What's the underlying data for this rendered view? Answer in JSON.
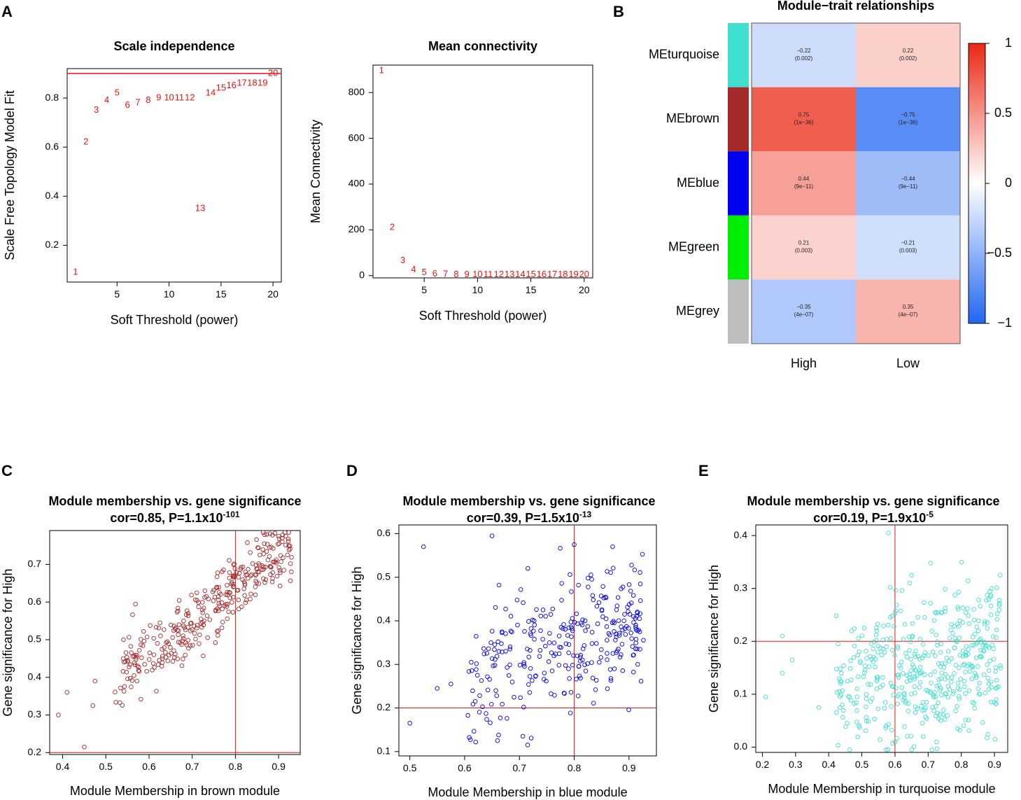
{
  "panel_labels": {
    "a": "A",
    "b": "B",
    "c": "C",
    "d": "D",
    "e": "E"
  },
  "colors": {
    "red": "#ee1111",
    "brown": "#a52a2a",
    "blue": "#0000ee",
    "turquoise": "#40e0d0"
  },
  "chart_data": [
    {
      "id": "A1",
      "type": "scatter",
      "title": "Scale independence",
      "xlabel": "Soft Threshold (power)",
      "ylabel": "Scale Free Topology Model Fit",
      "xlim": [
        0.2,
        20.8
      ],
      "ylim": [
        0.05,
        0.92
      ],
      "xticks": [
        5,
        10,
        15,
        20
      ],
      "yticks": [
        0.2,
        0.4,
        0.6,
        0.8
      ],
      "hline": 0.9,
      "points": [
        {
          "label": "1",
          "x": 1,
          "y": 0.09
        },
        {
          "label": "2",
          "x": 2,
          "y": 0.62
        },
        {
          "label": "3",
          "x": 3,
          "y": 0.75
        },
        {
          "label": "4",
          "x": 4,
          "y": 0.79
        },
        {
          "label": "5",
          "x": 5,
          "y": 0.82
        },
        {
          "label": "6",
          "x": 6,
          "y": 0.77
        },
        {
          "label": "7",
          "x": 7,
          "y": 0.78
        },
        {
          "label": "8",
          "x": 8,
          "y": 0.79
        },
        {
          "label": "9",
          "x": 9,
          "y": 0.8
        },
        {
          "label": "10",
          "x": 10,
          "y": 0.8
        },
        {
          "label": "11",
          "x": 11,
          "y": 0.8
        },
        {
          "label": "12",
          "x": 12,
          "y": 0.8
        },
        {
          "label": "13",
          "x": 13,
          "y": 0.35
        },
        {
          "label": "14",
          "x": 14,
          "y": 0.82
        },
        {
          "label": "15",
          "x": 15,
          "y": 0.84
        },
        {
          "label": "16",
          "x": 16,
          "y": 0.85
        },
        {
          "label": "17",
          "x": 17,
          "y": 0.86
        },
        {
          "label": "18",
          "x": 18,
          "y": 0.86
        },
        {
          "label": "19",
          "x": 19,
          "y": 0.86
        },
        {
          "label": "20",
          "x": 20,
          "y": 0.9
        }
      ]
    },
    {
      "id": "A2",
      "type": "scatter",
      "title": "Mean connectivity",
      "xlabel": "Soft Threshold (power)",
      "ylabel": "Mean Connectivity",
      "xlim": [
        0.2,
        20.8
      ],
      "ylim": [
        -10,
        920
      ],
      "xticks": [
        5,
        10,
        15,
        20
      ],
      "yticks": [
        0,
        200,
        400,
        600,
        800
      ],
      "points": [
        {
          "label": "1",
          "x": 1,
          "y": 895
        },
        {
          "label": "2",
          "x": 2,
          "y": 210
        },
        {
          "label": "3",
          "x": 3,
          "y": 65
        },
        {
          "label": "4",
          "x": 4,
          "y": 25
        },
        {
          "label": "5",
          "x": 5,
          "y": 12
        },
        {
          "label": "6",
          "x": 6,
          "y": 6
        },
        {
          "label": "7",
          "x": 7,
          "y": 5
        },
        {
          "label": "8",
          "x": 8,
          "y": 4
        },
        {
          "label": "9",
          "x": 9,
          "y": 3
        },
        {
          "label": "10",
          "x": 10,
          "y": 3
        },
        {
          "label": "11",
          "x": 11,
          "y": 3
        },
        {
          "label": "12",
          "x": 12,
          "y": 3
        },
        {
          "label": "13",
          "x": 13,
          "y": 3
        },
        {
          "label": "14",
          "x": 14,
          "y": 3
        },
        {
          "label": "15",
          "x": 15,
          "y": 3
        },
        {
          "label": "16",
          "x": 16,
          "y": 3
        },
        {
          "label": "17",
          "x": 17,
          "y": 3
        },
        {
          "label": "18",
          "x": 18,
          "y": 3
        },
        {
          "label": "19",
          "x": 19,
          "y": 3
        },
        {
          "label": "20",
          "x": 20,
          "y": 3
        }
      ]
    },
    {
      "id": "B",
      "type": "heatmap",
      "title": "Module−trait relationships",
      "columns": [
        "High",
        "Low"
      ],
      "rows": [
        {
          "module": "MEturquoise",
          "color": "#40e0d0",
          "cells": [
            {
              "r": -0.22,
              "p": "(0.002)",
              "label": "−0.22"
            },
            {
              "r": 0.22,
              "p": "(0.002)",
              "label": "0.22"
            }
          ]
        },
        {
          "module": "MEbrown",
          "color": "#a52a2a",
          "cells": [
            {
              "r": 0.75,
              "p": "(1e−36)",
              "label": "0.75"
            },
            {
              "r": -0.75,
              "p": "(1e−36)",
              "label": "−0.75"
            }
          ]
        },
        {
          "module": "MEblue",
          "color": "#0000ee",
          "cells": [
            {
              "r": 0.44,
              "p": "(9e−11)",
              "label": "0.44"
            },
            {
              "r": -0.44,
              "p": "(9e−11)",
              "label": "−0.44"
            }
          ]
        },
        {
          "module": "MEgreen",
          "color": "#00ee00",
          "cells": [
            {
              "r": 0.21,
              "p": "(0.003)",
              "label": "0.21"
            },
            {
              "r": -0.21,
              "p": "(0.003)",
              "label": "−0.21"
            }
          ]
        },
        {
          "module": "MEgrey",
          "color": "#bebebe",
          "cells": [
            {
              "r": -0.35,
              "p": "(4e−07)",
              "label": "−0.35"
            },
            {
              "r": 0.35,
              "p": "(4e−07)",
              "label": "0.35"
            }
          ]
        }
      ],
      "colorbar": {
        "range": [
          -1,
          1
        ],
        "ticks": [
          {
            "v": 1,
            "label": "1"
          },
          {
            "v": 0.5,
            "label": "0.5"
          },
          {
            "v": 0,
            "label": "0"
          },
          {
            "v": -0.5,
            "label": "−0.5"
          },
          {
            "v": -1,
            "label": "−1"
          }
        ]
      }
    },
    {
      "id": "C",
      "type": "scatter",
      "title": "Module membership vs. gene significance",
      "subtitle_base": "cor=0.85, P=1.1x10",
      "subtitle_exp": "-101",
      "xlabel": "Module Membership in brown module",
      "ylabel": "Gene significance for High",
      "color": "#a52a2a",
      "xlim": [
        0.37,
        0.95
      ],
      "ylim": [
        0.195,
        0.79
      ],
      "xticks": [
        0.4,
        0.5,
        0.6,
        0.7,
        0.8,
        0.9
      ],
      "yticks": [
        0.2,
        0.3,
        0.4,
        0.5,
        0.6,
        0.7
      ],
      "vline": 0.8,
      "hline": 0.2,
      "cor": 0.85,
      "n_points": 340,
      "xrange_points": [
        0.52,
        0.93
      ],
      "y_fit": {
        "intercept": -0.06,
        "slope": 0.87,
        "noise": 0.045
      },
      "extra_points": [
        [
          0.39,
          0.3
        ],
        [
          0.41,
          0.36
        ],
        [
          0.45,
          0.215
        ],
        [
          0.47,
          0.325
        ],
        [
          0.475,
          0.39
        ],
        [
          0.9,
          0.775
        ]
      ]
    },
    {
      "id": "D",
      "type": "scatter",
      "title": "Module membership vs. gene significance",
      "subtitle_base": "cor=0.39, P=1.5x10",
      "subtitle_exp": "-13",
      "xlabel": "Module Membership in blue module",
      "ylabel": "Gene significance for High",
      "color": "#0000ee",
      "xlim": [
        0.48,
        0.95
      ],
      "ylim": [
        0.09,
        0.62
      ],
      "xticks": [
        0.5,
        0.6,
        0.7,
        0.8,
        0.9
      ],
      "yticks": [
        0.1,
        0.2,
        0.3,
        0.4,
        0.5,
        0.6
      ],
      "vline": 0.8,
      "hline": 0.2,
      "cor": 0.39,
      "n_points": 300,
      "xrange_points": [
        0.6,
        0.93
      ],
      "y_fit": {
        "intercept": 0.05,
        "slope": 0.38,
        "noise": 0.075
      },
      "extra_points": [
        [
          0.5,
          0.165
        ],
        [
          0.525,
          0.57
        ],
        [
          0.55,
          0.245
        ],
        [
          0.575,
          0.255
        ],
        [
          0.65,
          0.595
        ],
        [
          0.8,
          0.575
        ],
        [
          0.87,
          0.57
        ],
        [
          0.715,
          0.115
        ],
        [
          0.66,
          0.125
        ]
      ]
    },
    {
      "id": "E",
      "type": "scatter",
      "title": "Module membership vs. gene significance",
      "subtitle_base": "cor=0.19, P=1.9x10",
      "subtitle_exp": "-5",
      "xlabel": "Module Membership in turquoise module",
      "ylabel": "Gene significance for High",
      "color": "#40e0d0",
      "xlim": [
        0.18,
        0.94
      ],
      "ylim": [
        -0.01,
        0.42
      ],
      "xticks": [
        0.2,
        0.3,
        0.4,
        0.5,
        0.6,
        0.7,
        0.8,
        0.9
      ],
      "yticks": [
        0.0,
        0.1,
        0.2,
        0.3,
        0.4
      ],
      "vline": 0.6,
      "hline": 0.2,
      "cor": 0.19,
      "n_points": 460,
      "xrange_points": [
        0.42,
        0.92
      ],
      "y_fit": {
        "intercept": 0.04,
        "slope": 0.15,
        "noise": 0.07
      },
      "extra_points": [
        [
          0.21,
          0.095
        ],
        [
          0.26,
          0.21
        ],
        [
          0.26,
          0.14
        ],
        [
          0.29,
          0.165
        ],
        [
          0.37,
          0.075
        ],
        [
          0.58,
          0.405
        ],
        [
          0.65,
          0.325
        ]
      ]
    }
  ]
}
